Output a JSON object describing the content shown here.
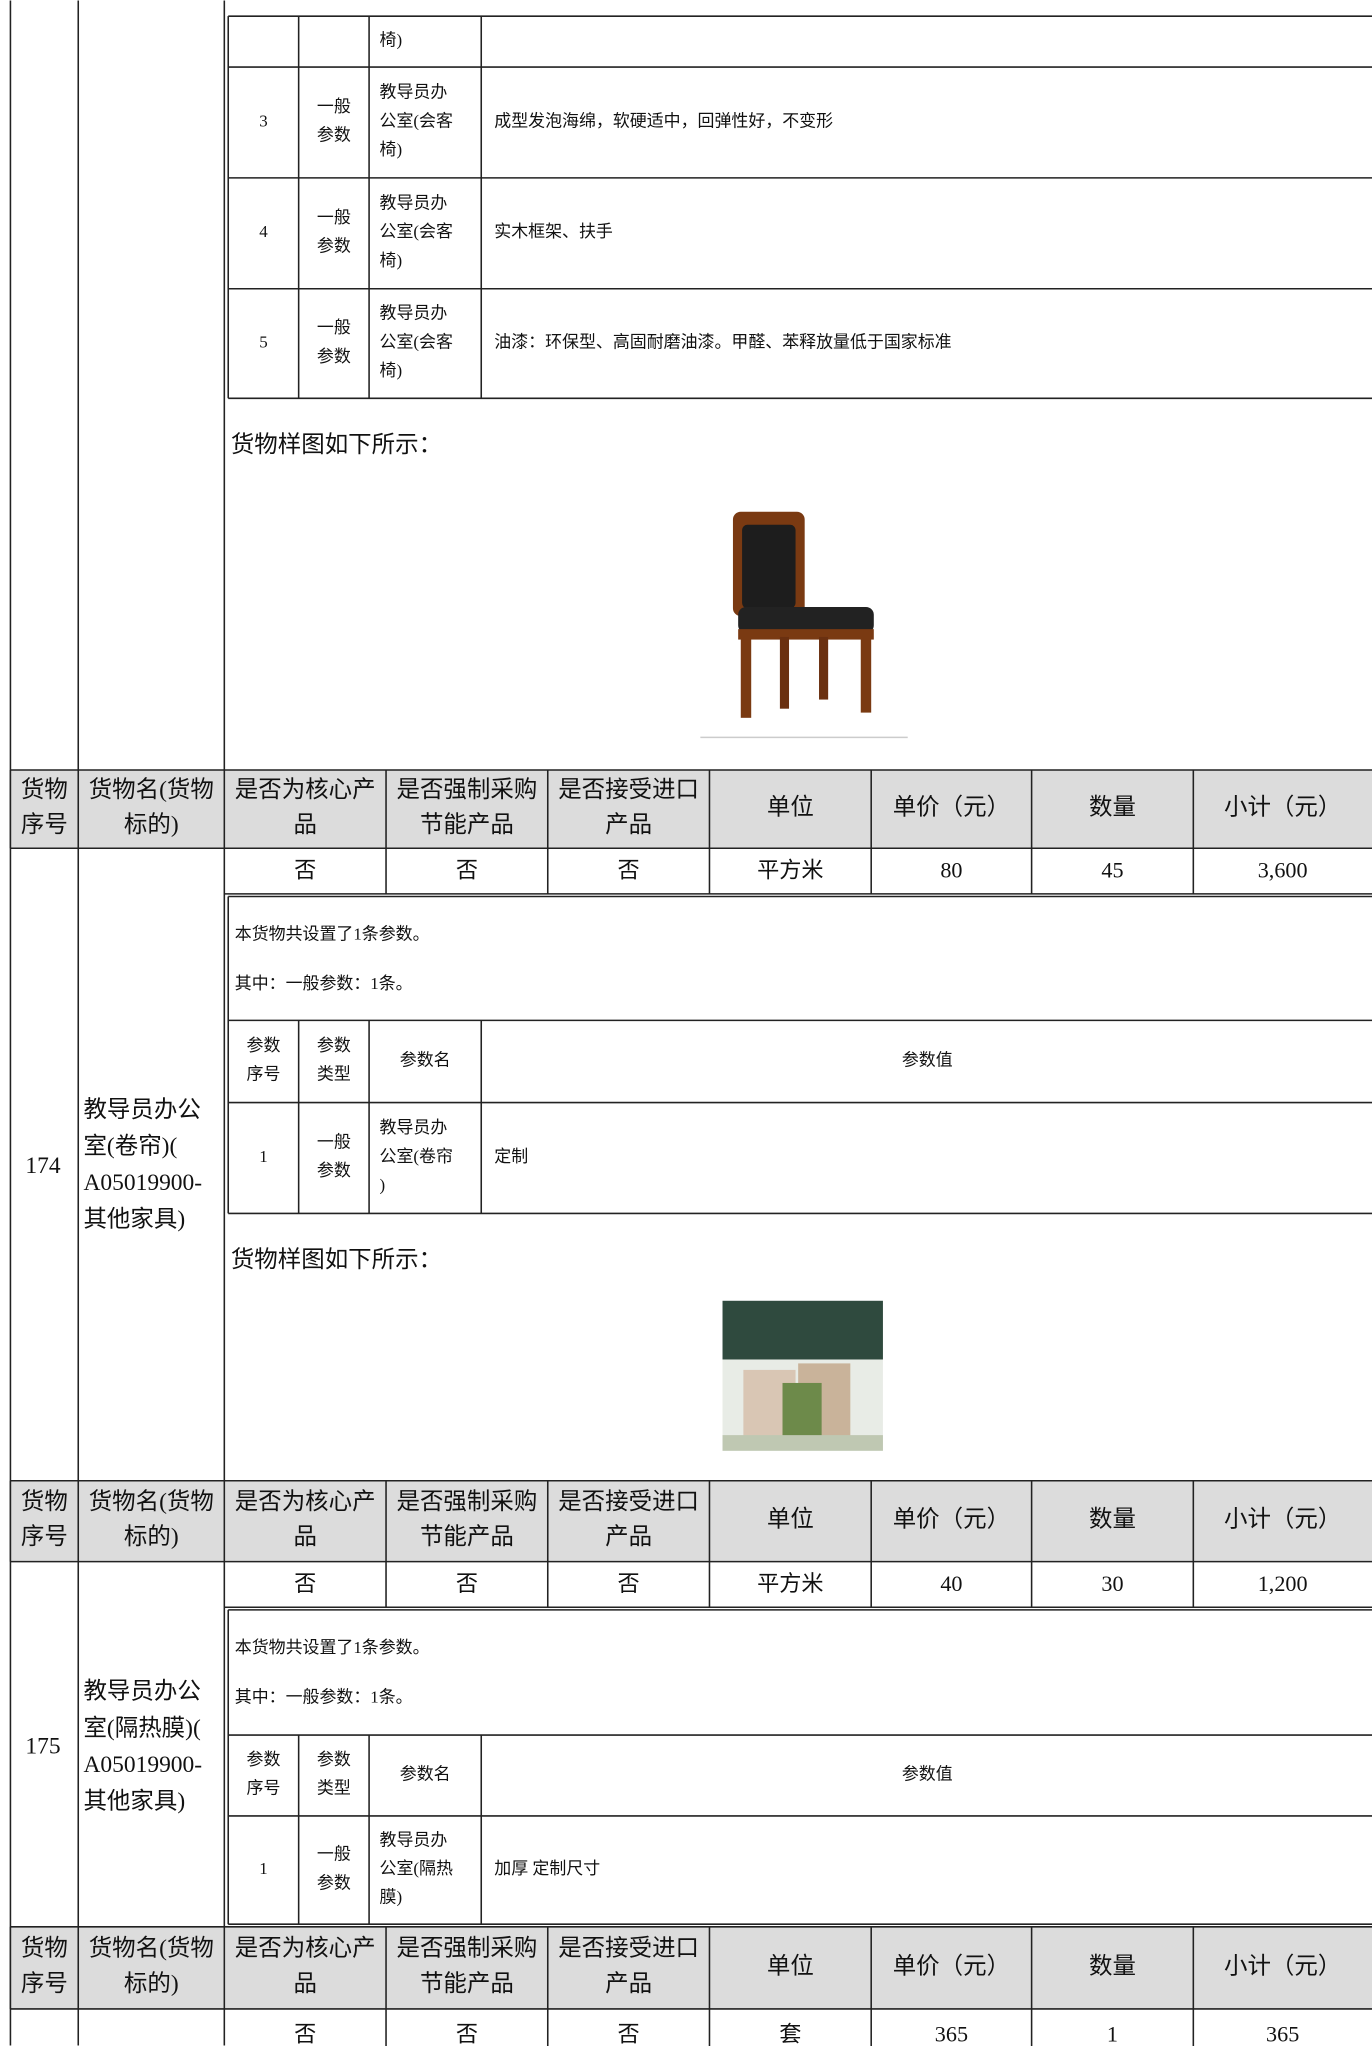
{
  "top_fragment": {
    "rows": [
      {
        "name": [
          "椅)"
        ]
      },
      {
        "no": "3",
        "type": [
          "一般",
          "参数"
        ],
        "name": [
          "教导员办",
          "公室(会客",
          "椅)"
        ],
        "value": "成型发泡海绵，软硬适中，回弹性好，不变形"
      },
      {
        "no": "4",
        "type": [
          "一般",
          "参数"
        ],
        "name": [
          "教导员办",
          "公室(会客",
          "椅)"
        ],
        "value": "实木框架、扶手"
      },
      {
        "no": "5",
        "type": [
          "一般",
          "参数"
        ],
        "name": [
          "教导员办",
          "公室(会客",
          "椅)"
        ],
        "value": "油漆：环保型、高固耐磨油漆。甲醛、苯释放量低于国家标准"
      }
    ],
    "sample_caption": "货物样图如下所示："
  },
  "header": [
    [
      "货物",
      "序号"
    ],
    [
      "货物名(货物",
      "标的)"
    ],
    [
      "是否为核心产",
      "品"
    ],
    [
      "是否强制采购",
      "节能产品"
    ],
    [
      "是否接受进口",
      "产品"
    ],
    [
      "单位"
    ],
    [
      "单价（元）"
    ],
    [
      "数量"
    ],
    [
      "小计（元）"
    ]
  ],
  "items": [
    {
      "no": "174",
      "name": [
        "教导员办公",
        "室(卷帘)(",
        "A05019900-",
        "其他家具)"
      ],
      "core": "否",
      "energy": "否",
      "import": "否",
      "unit": "平方米",
      "price": 80,
      "qty": 45,
      "subtotal": "3,600",
      "param_summary": [
        "本货物共设置了1条参数。",
        "其中：一般参数：1条。"
      ],
      "param_header": [
        [
          "参数",
          "序号"
        ],
        [
          "参数",
          "类型"
        ],
        [
          "参数名"
        ],
        [
          "参数值"
        ]
      ],
      "params": [
        {
          "no": "1",
          "type": [
            "一般",
            "参数"
          ],
          "name": [
            "教导员办",
            "公室(卷帘",
            ")"
          ],
          "value": "定制"
        }
      ],
      "sample_caption": "货物样图如下所示："
    },
    {
      "no": "175",
      "name": [
        "教导员办公",
        "室(隔热膜)(",
        "A05019900-",
        "其他家具)"
      ],
      "core": "否",
      "energy": "否",
      "import": "否",
      "unit": "平方米",
      "price": 40,
      "qty": 30,
      "subtotal": "1,200",
      "param_summary": [
        "本货物共设置了1条参数。",
        "其中：一般参数：1条。"
      ],
      "param_header": [
        [
          "参数",
          "序号"
        ],
        [
          "参数",
          "类型"
        ],
        [
          "参数名"
        ],
        [
          "参数值"
        ]
      ],
      "params": [
        {
          "no": "1",
          "type": [
            "一般",
            "参数"
          ],
          "name": [
            "教导员办",
            "公室(隔热",
            "膜)"
          ],
          "value": "加厚 定制尺寸"
        }
      ]
    },
    {
      "core": "否",
      "energy": "否",
      "import": "否",
      "unit": "套",
      "price": 365,
      "qty": 1,
      "subtotal": 365
    }
  ]
}
